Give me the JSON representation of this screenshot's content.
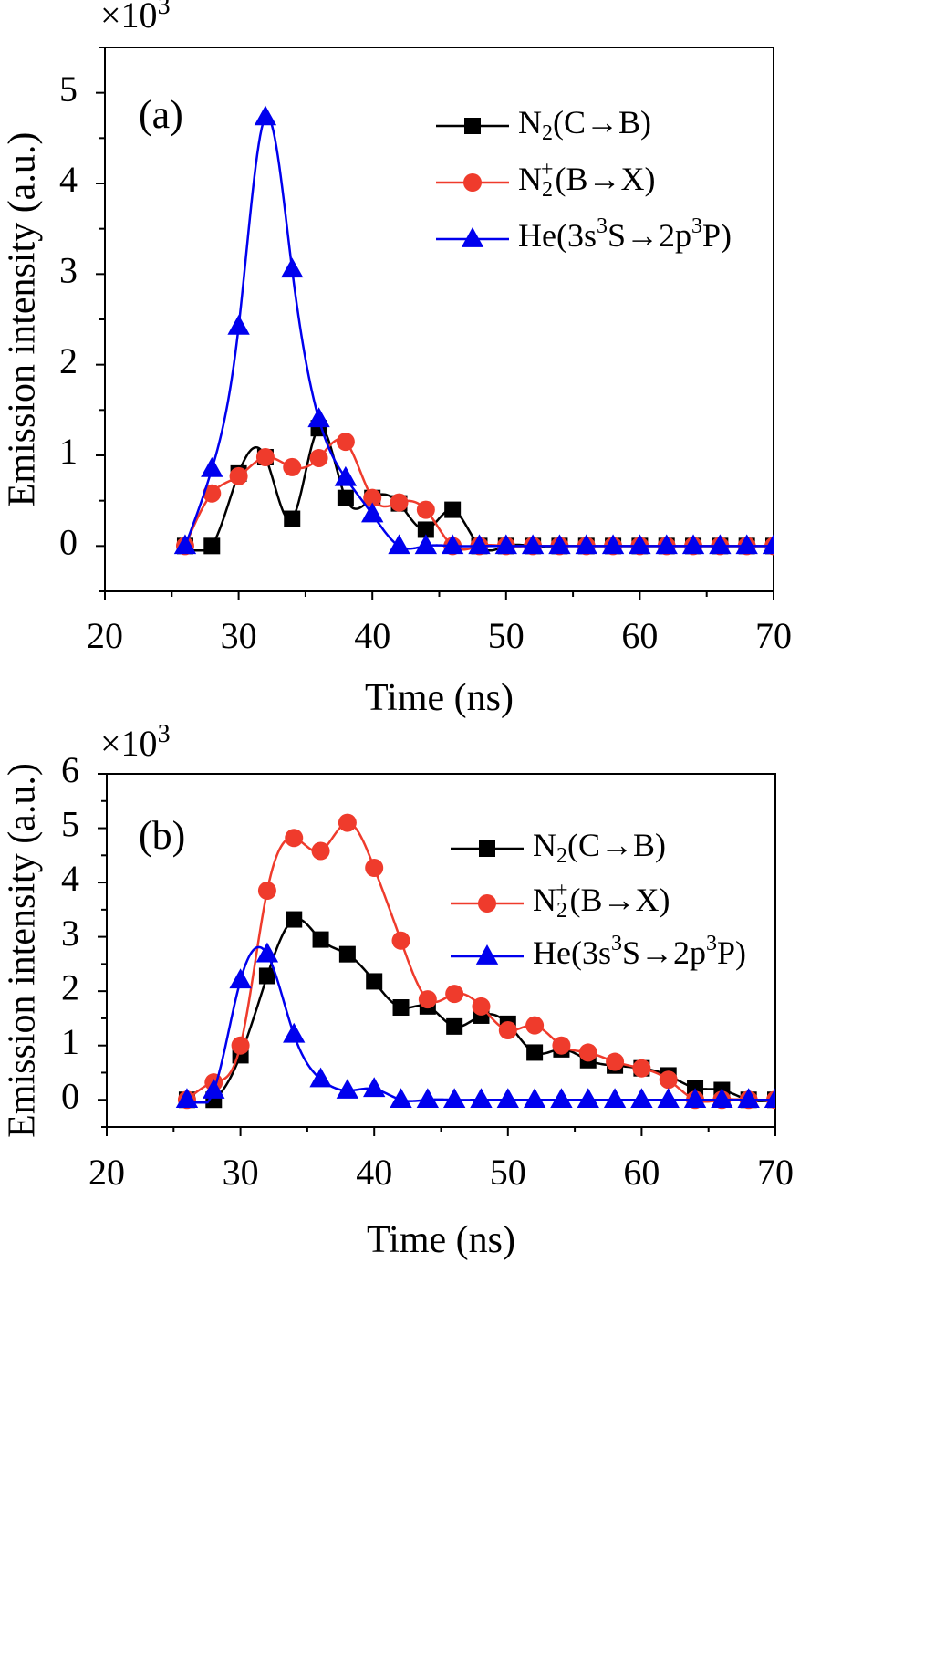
{
  "chart_data": [
    {
      "type": "scatter",
      "panel_label": "(a)",
      "multiplier_label": "×10",
      "multiplier_exp": "3",
      "xlabel": "Time (ns)",
      "ylabel": "Emission intensity (a.u.)",
      "xlim": [
        20,
        70
      ],
      "ylim": [
        -0.5,
        5.5
      ],
      "xticks": [
        "20",
        "30",
        "40",
        "50",
        "60",
        "70"
      ],
      "yticks": [
        "0",
        "1",
        "2",
        "3",
        "4",
        "5"
      ],
      "legend_position": "top-right",
      "series": [
        {
          "name": "N2(C→B)",
          "color": "#000000",
          "marker": "square",
          "x": [
            26,
            28,
            30,
            32,
            34,
            36,
            38,
            40,
            42,
            44,
            46,
            48,
            50,
            52,
            54,
            56,
            58,
            60,
            62,
            64,
            66,
            68,
            70
          ],
          "y": [
            0,
            0,
            0.8,
            0.98,
            0.3,
            1.3,
            0.53,
            0.53,
            0.47,
            0.18,
            0.4,
            0,
            0,
            0,
            0,
            0,
            0,
            0,
            0,
            0,
            0,
            0,
            0
          ]
        },
        {
          "name": "N2+(B→X)",
          "color": "#ef3b2c",
          "marker": "circle",
          "x": [
            26,
            28,
            30,
            32,
            34,
            36,
            38,
            40,
            42,
            44,
            46,
            48,
            50,
            52,
            54,
            56,
            58,
            60,
            62,
            64,
            66,
            68,
            70
          ],
          "y": [
            0,
            0.58,
            0.77,
            0.98,
            0.87,
            0.97,
            1.15,
            0.53,
            0.48,
            0.4,
            0,
            0,
            0,
            0,
            0,
            0,
            0,
            0,
            0,
            0,
            0,
            0,
            0
          ]
        },
        {
          "name": "He(3s3S→2p3P)",
          "color": "#0000ee",
          "marker": "triangle",
          "x": [
            26,
            28,
            30,
            32,
            34,
            36,
            38,
            40,
            42,
            44,
            46,
            48,
            50,
            52,
            54,
            56,
            58,
            60,
            62,
            64,
            66,
            68,
            70
          ],
          "y": [
            0,
            0.85,
            2.42,
            4.73,
            3.05,
            1.4,
            0.75,
            0.35,
            0,
            0,
            0,
            0,
            0,
            0,
            0,
            0,
            0,
            0,
            0,
            0,
            0,
            0,
            0
          ]
        }
      ]
    },
    {
      "type": "scatter",
      "panel_label": "(b)",
      "multiplier_label": "×10",
      "multiplier_exp": "3",
      "xlabel": "Time (ns)",
      "ylabel": "Emission intensity (a.u.)",
      "xlim": [
        20,
        70
      ],
      "ylim": [
        -0.5,
        6
      ],
      "xticks": [
        "20",
        "30",
        "40",
        "50",
        "60",
        "70"
      ],
      "yticks": [
        "0",
        "1",
        "2",
        "3",
        "4",
        "5",
        "6"
      ],
      "legend_position": "top-right",
      "series": [
        {
          "name": "N2(C→B)",
          "color": "#000000",
          "marker": "square",
          "x": [
            26,
            28,
            30,
            32,
            34,
            36,
            38,
            40,
            42,
            44,
            46,
            48,
            50,
            52,
            54,
            56,
            58,
            60,
            62,
            64,
            66,
            68,
            70
          ],
          "y": [
            0,
            0,
            0.82,
            2.28,
            3.32,
            2.95,
            2.68,
            2.18,
            1.7,
            1.72,
            1.35,
            1.55,
            1.4,
            0.87,
            0.93,
            0.73,
            0.63,
            0.58,
            0.45,
            0.22,
            0.18,
            0,
            0
          ]
        },
        {
          "name": "N2+(B→X)",
          "color": "#ef3b2c",
          "marker": "circle",
          "x": [
            26,
            28,
            30,
            32,
            34,
            36,
            38,
            40,
            42,
            44,
            46,
            48,
            50,
            52,
            54,
            56,
            58,
            60,
            62,
            64,
            66,
            68,
            70
          ],
          "y": [
            0,
            0.32,
            1.0,
            3.85,
            4.82,
            4.58,
            5.1,
            4.27,
            2.93,
            1.85,
            1.95,
            1.72,
            1.28,
            1.37,
            1.0,
            0.87,
            0.7,
            0.58,
            0.37,
            0,
            0,
            0,
            0
          ]
        },
        {
          "name": "He(3s3S→2p3P)",
          "color": "#0000ee",
          "marker": "triangle",
          "x": [
            26,
            28,
            30,
            32,
            34,
            36,
            38,
            40,
            42,
            44,
            46,
            48,
            50,
            52,
            54,
            56,
            58,
            60,
            62,
            64,
            66,
            68,
            70
          ],
          "y": [
            0,
            0.17,
            2.2,
            2.68,
            1.2,
            0.38,
            0.17,
            0.2,
            0,
            0,
            0,
            0,
            0,
            0,
            0,
            0,
            0,
            0,
            0,
            0,
            0,
            0,
            0
          ]
        }
      ]
    }
  ]
}
